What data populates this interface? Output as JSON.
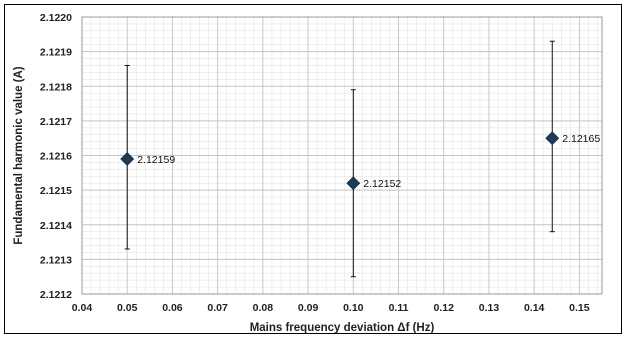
{
  "chart_data": {
    "type": "scatter",
    "title": "",
    "xlabel": "Mains frequency deviation Δf (Hz)",
    "ylabel": "Fundamental harmonic value (A)",
    "xlim": [
      0.04,
      0.155
    ],
    "ylim": [
      2.1212,
      2.122
    ],
    "x_major_ticks": [
      0.04,
      0.05,
      0.06,
      0.07,
      0.08,
      0.09,
      0.1,
      0.11,
      0.12,
      0.13,
      0.14,
      0.15
    ],
    "x_tick_labels": [
      "0.04",
      "0.05",
      "0.06",
      "0.07",
      "0.08",
      "0.09",
      "0.10",
      "0.11",
      "0.12",
      "0.13",
      "0.14",
      "0.15"
    ],
    "y_major_ticks": [
      2.1212,
      2.1213,
      2.1214,
      2.1215,
      2.1216,
      2.1217,
      2.1218,
      2.1219,
      2.122
    ],
    "y_tick_labels": [
      "2.1212",
      "2.1213",
      "2.1214",
      "2.1215",
      "2.1216",
      "2.1217",
      "2.1218",
      "2.1219",
      "2.1220"
    ],
    "grid": true,
    "marker": "diamond",
    "marker_color": "#1f3b5c",
    "points": [
      {
        "x": 0.05,
        "y": 2.12159,
        "err_low": 2.12133,
        "err_high": 2.12186,
        "label": "2.12159"
      },
      {
        "x": 0.1,
        "y": 2.12152,
        "err_low": 2.12125,
        "err_high": 2.12179,
        "label": "2.12152"
      },
      {
        "x": 0.144,
        "y": 2.12165,
        "err_low": 2.12138,
        "err_high": 2.12193,
        "label": "2.12165"
      }
    ]
  }
}
